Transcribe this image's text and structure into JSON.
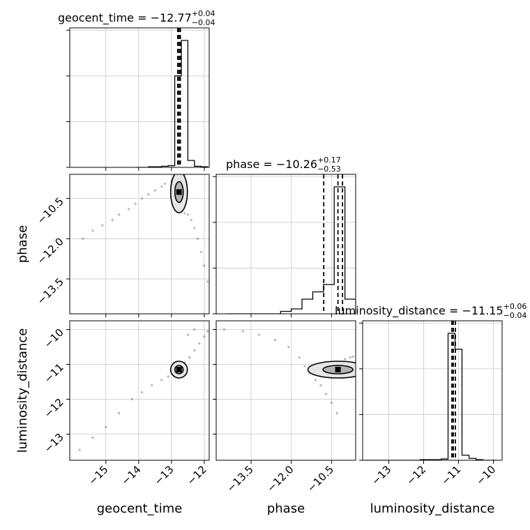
{
  "chart_data": {
    "type": "corner",
    "parameters": [
      "geocent_time",
      "phase",
      "luminosity_distance"
    ],
    "axis_labels": {
      "geocent_time": "geocent_time",
      "phase": "phase",
      "luminosity_distance": "luminosity_distance"
    },
    "ranges": {
      "geocent_time": [
        -16.1,
        -11.85
      ],
      "phase": [
        -14.8,
        -9.6
      ],
      "luminosity_distance": [
        -13.75,
        -9.75
      ]
    },
    "ticks": {
      "geocent_time": {
        "values": [
          -15,
          -14,
          -13,
          -12
        ],
        "labels": [
          "−15",
          "−14",
          "−13",
          "−12"
        ]
      },
      "phase": {
        "values": [
          -13.5,
          -12.0,
          -10.5
        ],
        "labels": [
          "−13.5",
          "−12.0",
          "−10.5"
        ]
      },
      "luminosity_distance": {
        "values": [
          -13,
          -12,
          -11,
          -10
        ],
        "labels": [
          "−13",
          "−12",
          "−11",
          "−10"
        ]
      }
    },
    "titles": [
      {
        "param": "geocent_time",
        "prefix": "geocent_time = −12.77",
        "sup": "+0.04",
        "sub": "−0.04"
      },
      {
        "param": "phase",
        "prefix": "phase = −10.26",
        "sup": "+0.17",
        "sub": "−0.53"
      },
      {
        "param": "luminosity_distance",
        "prefix": "luminosity_distance = −11.15",
        "sup": "+0.06",
        "sub": "−0.04"
      }
    ],
    "quantiles": {
      "geocent_time": [
        -12.81,
        -12.77,
        -12.73
      ],
      "phase": [
        -10.79,
        -10.26,
        -10.09
      ],
      "luminosity_distance": [
        -11.19,
        -11.15,
        -11.09
      ]
    },
    "histograms": {
      "geocent_time": {
        "edges": [
          -14.1,
          -13.9,
          -13.7,
          -13.5,
          -13.3,
          -13.1,
          -12.9,
          -12.7,
          -12.5,
          -12.3,
          -12.1,
          -11.9
        ],
        "counts": [
          0,
          0,
          1,
          1,
          2,
          3,
          160,
          222,
          12,
          2,
          1
        ]
      },
      "phase": {
        "edges": [
          -14.4,
          -14.0,
          -13.6,
          -13.2,
          -12.8,
          -12.4,
          -12.0,
          -11.6,
          -11.2,
          -10.8,
          -10.4,
          -10.0,
          -9.6
        ],
        "counts": [
          0,
          0,
          0,
          0,
          0,
          1,
          2,
          6,
          9,
          12,
          52,
          6
        ]
      },
      "luminosity_distance": {
        "edges": [
          -13.7,
          -13.5,
          -13.3,
          -13.1,
          -12.9,
          -12.7,
          -12.5,
          -12.3,
          -12.1,
          -11.9,
          -11.7,
          -11.5,
          -11.3,
          -11.1,
          -10.9,
          -10.7,
          -10.5,
          -10.3,
          -10.1,
          -9.9
        ],
        "counts": [
          0,
          0,
          0,
          0,
          0,
          0,
          0,
          0,
          1,
          1,
          1,
          2,
          200,
          175,
          8,
          3,
          1,
          0,
          0
        ]
      }
    },
    "scatter": {
      "phase_vs_geocent_time": [
        [
          -15.7,
          -12.0
        ],
        [
          -15.4,
          -11.7
        ],
        [
          -15.1,
          -11.5
        ],
        [
          -14.8,
          -11.3
        ],
        [
          -14.6,
          -11.1
        ],
        [
          -14.3,
          -10.9
        ],
        [
          -14.1,
          -10.7
        ],
        [
          -13.9,
          -10.5
        ],
        [
          -13.7,
          -10.35
        ],
        [
          -13.5,
          -10.2
        ],
        [
          -13.3,
          -10.05
        ],
        [
          -13.2,
          -9.95
        ],
        [
          -13.0,
          -9.85
        ],
        [
          -12.9,
          -9.8
        ],
        [
          -12.8,
          -9.72
        ],
        [
          -12.7,
          -9.65
        ],
        [
          -12.6,
          -9.6
        ],
        [
          -12.75,
          -10.3
        ],
        [
          -12.7,
          -10.45
        ],
        [
          -12.65,
          -10.6
        ],
        [
          -12.7,
          -10.8
        ],
        [
          -12.75,
          -11.0
        ],
        [
          -12.6,
          -11.05
        ],
        [
          -12.5,
          -11.1
        ],
        [
          -12.4,
          -11.3
        ],
        [
          -12.3,
          -11.6
        ],
        [
          -12.2,
          -12.0
        ],
        [
          -12.1,
          -12.5
        ],
        [
          -12.0,
          -13.0
        ],
        [
          -11.9,
          -13.6
        ]
      ],
      "luminosity_distance_vs_geocent_time": [
        [
          -15.8,
          -13.45
        ],
        [
          -15.4,
          -13.1
        ],
        [
          -15.0,
          -12.8
        ],
        [
          -14.6,
          -12.4
        ],
        [
          -14.2,
          -12.0
        ],
        [
          -13.9,
          -11.8
        ],
        [
          -13.6,
          -11.6
        ],
        [
          -13.3,
          -11.45
        ],
        [
          -13.1,
          -11.35
        ],
        [
          -12.95,
          -11.25
        ],
        [
          -12.8,
          -11.18
        ],
        [
          -12.7,
          -11.08
        ],
        [
          -12.6,
          -10.95
        ],
        [
          -12.45,
          -10.8
        ],
        [
          -12.3,
          -10.6
        ],
        [
          -12.15,
          -10.4
        ],
        [
          -12.0,
          -10.2
        ],
        [
          -11.9,
          -10.05
        ],
        [
          -12.5,
          -10.15
        ],
        [
          -12.3,
          -10.0
        ]
      ],
      "luminosity_distance_vs_phase": [
        [
          -14.5,
          -10.0
        ],
        [
          -13.8,
          -10.05
        ],
        [
          -13.2,
          -10.15
        ],
        [
          -12.6,
          -10.3
        ],
        [
          -12.1,
          -10.5
        ],
        [
          -11.7,
          -10.8
        ],
        [
          -11.5,
          -11.05
        ],
        [
          -11.3,
          -11.25
        ],
        [
          -11.1,
          -11.45
        ],
        [
          -10.9,
          -11.6
        ],
        [
          -10.7,
          -11.85
        ],
        [
          -10.5,
          -12.1
        ],
        [
          -10.3,
          -12.4
        ],
        [
          -10.6,
          -11.15
        ],
        [
          -10.4,
          -11.05
        ],
        [
          -10.2,
          -10.95
        ],
        [
          -10.0,
          -10.85
        ],
        [
          -9.8,
          -10.8
        ],
        [
          -9.7,
          -10.78
        ],
        [
          -10.35,
          -11.2
        ]
      ]
    }
  }
}
